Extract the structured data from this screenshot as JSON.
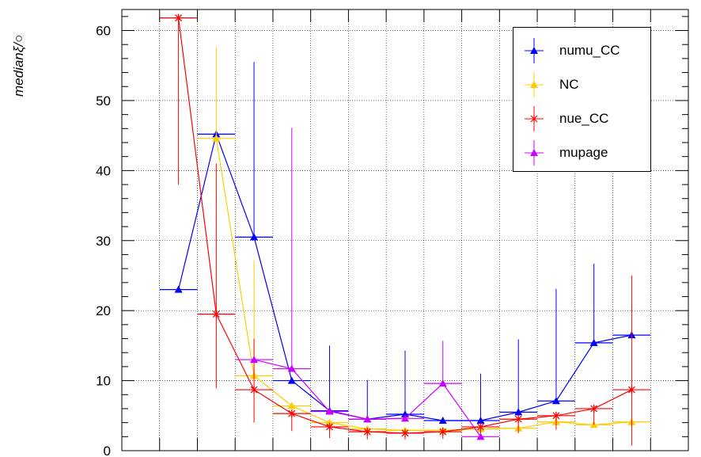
{
  "chart_data": {
    "type": "line",
    "ylabel": "medianξ/○",
    "xlabel": "",
    "ylim": [
      0,
      63
    ],
    "yticks": [
      "0",
      "10",
      "20",
      "30",
      "40",
      "50",
      "60"
    ],
    "grid": true,
    "legend_position": "top-right",
    "x": [
      1,
      2,
      3,
      4,
      5,
      6,
      7,
      8,
      9,
      10,
      11,
      12,
      13
    ],
    "series": [
      {
        "name": "numu_CC",
        "color": "#0000ff",
        "marker": "triangle",
        "values": [
          23.0,
          45.2,
          30.5,
          10.0,
          5.7,
          4.5,
          5.2,
          4.3,
          4.3,
          5.5,
          7.1,
          15.4,
          16.5
        ],
        "err_low": [
          0,
          0,
          0,
          0,
          0,
          0,
          0,
          0,
          0,
          0,
          0,
          0,
          0
        ],
        "err_high": [
          0,
          0,
          25,
          0,
          9.3,
          5.6,
          9.1,
          0,
          6.7,
          10.4,
          16.0,
          11.3,
          0
        ]
      },
      {
        "name": "NC",
        "color": "#ffcc00",
        "marker": "triangle",
        "values": [
          null,
          44.6,
          10.7,
          6.4,
          4.0,
          3.1,
          2.9,
          2.9,
          3.1,
          3.2,
          4.1,
          3.7,
          4.1
        ],
        "err_low": [
          0,
          0,
          0,
          0,
          0,
          0,
          0,
          0,
          0,
          0,
          0,
          0,
          0
        ],
        "err_high": [
          0,
          13.0,
          16.5,
          0,
          0,
          0,
          0,
          0,
          0,
          0,
          0,
          0,
          0
        ]
      },
      {
        "name": "nue_CC",
        "color": "#ff0000",
        "marker": "star",
        "values": [
          61.8,
          19.5,
          8.7,
          5.3,
          3.4,
          2.7,
          2.5,
          2.7,
          3.4,
          4.5,
          5.0,
          6.0,
          8.7
        ],
        "err_low": [
          23.8,
          10.6,
          4.7,
          2.5,
          1.6,
          1.1,
          0.9,
          1.0,
          1.3,
          2.0,
          2.0,
          2.3,
          8.0
        ],
        "err_high": [
          0,
          21.5,
          7.3,
          0,
          0,
          0,
          0,
          0,
          0,
          0,
          0,
          0,
          16.3
        ]
      },
      {
        "name": "mupage",
        "color": "#cc00ff",
        "marker": "triangle",
        "values": [
          null,
          null,
          13.0,
          11.7,
          5.6,
          4.5,
          4.6,
          9.6,
          2.0,
          null,
          null,
          null,
          null
        ],
        "err_low": [
          0,
          0,
          0,
          0,
          0,
          0,
          0,
          0,
          0,
          0,
          0,
          0,
          0
        ],
        "err_high": [
          0,
          0,
          0,
          34.4,
          0,
          0,
          0,
          6.1,
          0,
          0,
          0,
          0,
          0
        ]
      }
    ]
  }
}
